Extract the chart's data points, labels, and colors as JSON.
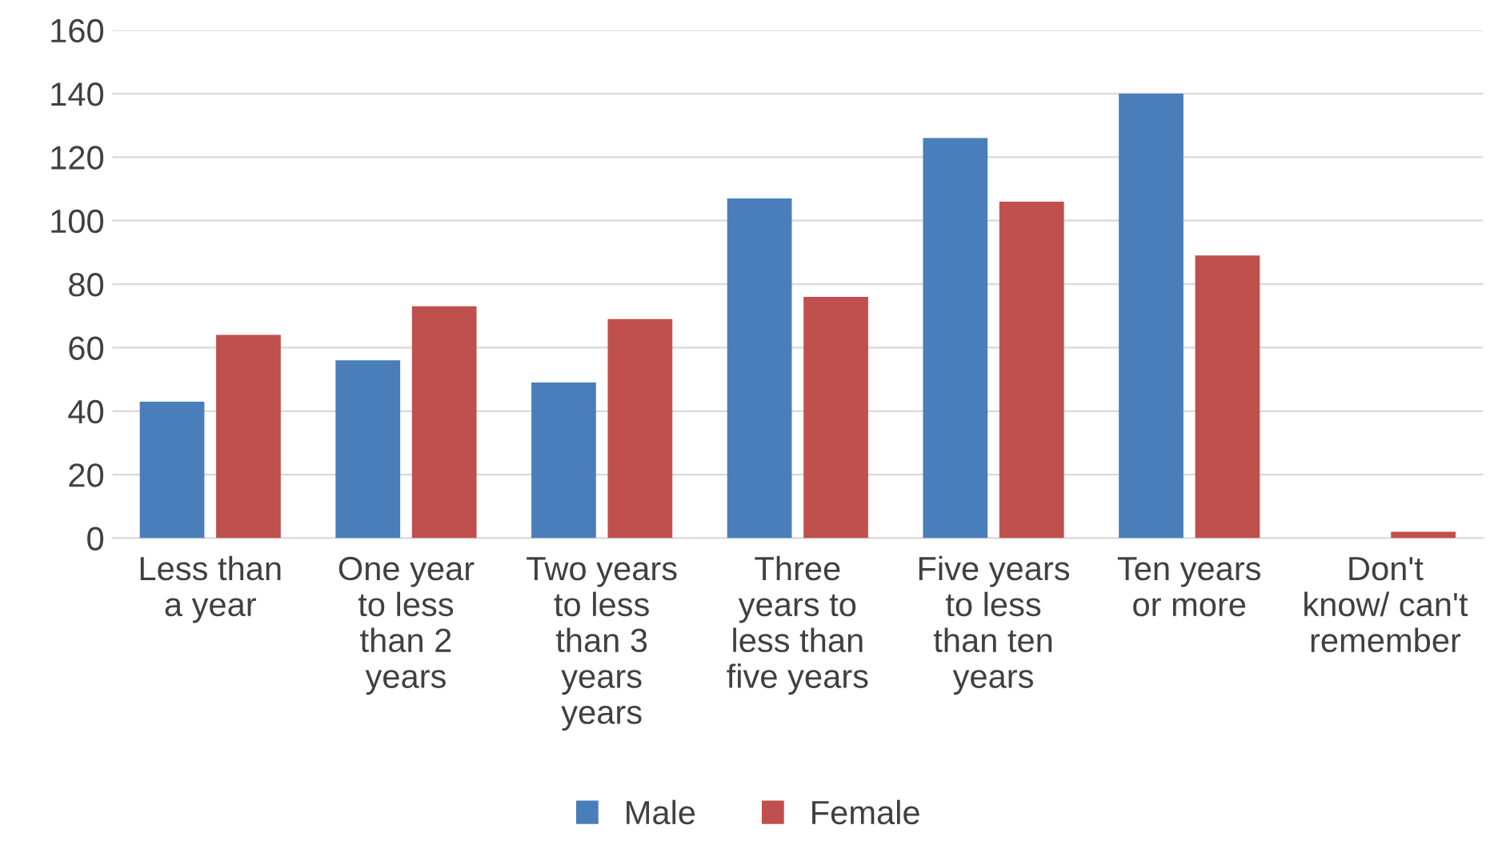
{
  "chart_data": {
    "type": "bar",
    "categories": [
      "Less than\na year",
      "One year\nto less\nthan 2\nyears",
      "Two years\nto less\nthan 3\nyears\nyears",
      "Three\nyears to\nless than\nfive years",
      "Five years\nto less\nthan ten\nyears",
      "Ten years\nor more",
      "Don't\nknow/ can't\nremember"
    ],
    "series": [
      {
        "name": "Male",
        "color": "#4a7ebb",
        "values": [
          43,
          56,
          49,
          107,
          126,
          140,
          0
        ]
      },
      {
        "name": "Female",
        "color": "#c0504d",
        "values": [
          64,
          73,
          69,
          76,
          106,
          89,
          2
        ]
      }
    ],
    "ylim": [
      0,
      160
    ],
    "yticks": [
      0,
      20,
      40,
      60,
      80,
      100,
      120,
      140,
      160
    ],
    "grid": "y",
    "legend": "bottom"
  }
}
